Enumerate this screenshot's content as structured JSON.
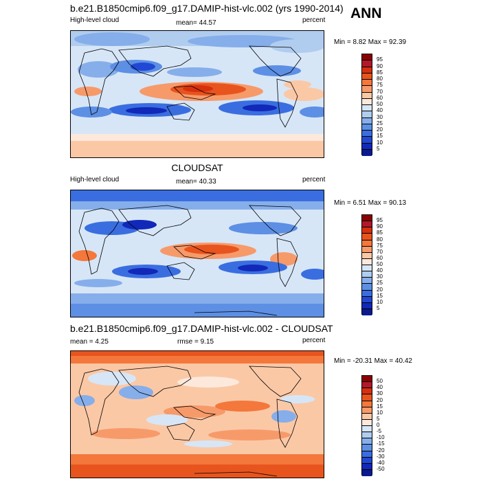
{
  "header": {
    "ann_label": "ANN"
  },
  "panels": [
    {
      "title": "b.e21.B1850cmip6.f09_g17.DAMIP-hist-vlc.002 (yrs 1990-2014)",
      "left_label": "High-level cloud",
      "stat_label": "mean=  44.57",
      "units": "percent",
      "minmax": "Min =   8.82 Max =  92.39",
      "colorbar": {
        "labels": [
          "95",
          "90",
          "85",
          "80",
          "75",
          "70",
          "60",
          "50",
          "40",
          "30",
          "25",
          "20",
          "15",
          "10",
          "5"
        ],
        "colors": [
          "#8b0000",
          "#b2182b",
          "#d6300f",
          "#e8541e",
          "#f4773b",
          "#f79a6a",
          "#fbc8a6",
          "#fde9dc",
          "#d6e6f7",
          "#b0cdf0",
          "#86aeea",
          "#5d8fe4",
          "#3a6ee0",
          "#2148d4",
          "#1128b8",
          "#0a1a8f"
        ]
      }
    },
    {
      "title": "CLOUDSAT",
      "left_label": "High-level cloud",
      "stat_label": "mean=  40.33",
      "units": "percent",
      "minmax": "Min =   6.51 Max =  90.13",
      "colorbar": {
        "labels": [
          "95",
          "90",
          "85",
          "80",
          "75",
          "70",
          "60",
          "50",
          "40",
          "30",
          "25",
          "20",
          "15",
          "10",
          "5"
        ],
        "colors": [
          "#8b0000",
          "#b2182b",
          "#d6300f",
          "#e8541e",
          "#f4773b",
          "#f79a6a",
          "#fbc8a6",
          "#fde9dc",
          "#d6e6f7",
          "#b0cdf0",
          "#86aeea",
          "#5d8fe4",
          "#3a6ee0",
          "#2148d4",
          "#1128b8",
          "#0a1a8f"
        ]
      }
    },
    {
      "title": "b.e21.B1850cmip6.f09_g17.DAMIP-hist-vlc.002 - CLOUDSAT",
      "left_label": "mean =   4.25",
      "stat_label": "rmse =   9.15",
      "units": "percent",
      "minmax": "Min = -20.31 Max =  40.42",
      "colorbar": {
        "labels": [
          "50",
          "40",
          "30",
          "20",
          "15",
          "10",
          "5",
          "0",
          "-5",
          "-10",
          "-15",
          "-20",
          "-30",
          "-40",
          "-50"
        ],
        "colors": [
          "#8b0000",
          "#b2182b",
          "#d6300f",
          "#e8541e",
          "#f4773b",
          "#f79a6a",
          "#fbc8a6",
          "#fde9dc",
          "#d6e6f7",
          "#b0cdf0",
          "#86aeea",
          "#5d8fe4",
          "#3a6ee0",
          "#2148d4",
          "#1128b8",
          "#0a1a8f"
        ]
      }
    }
  ]
}
